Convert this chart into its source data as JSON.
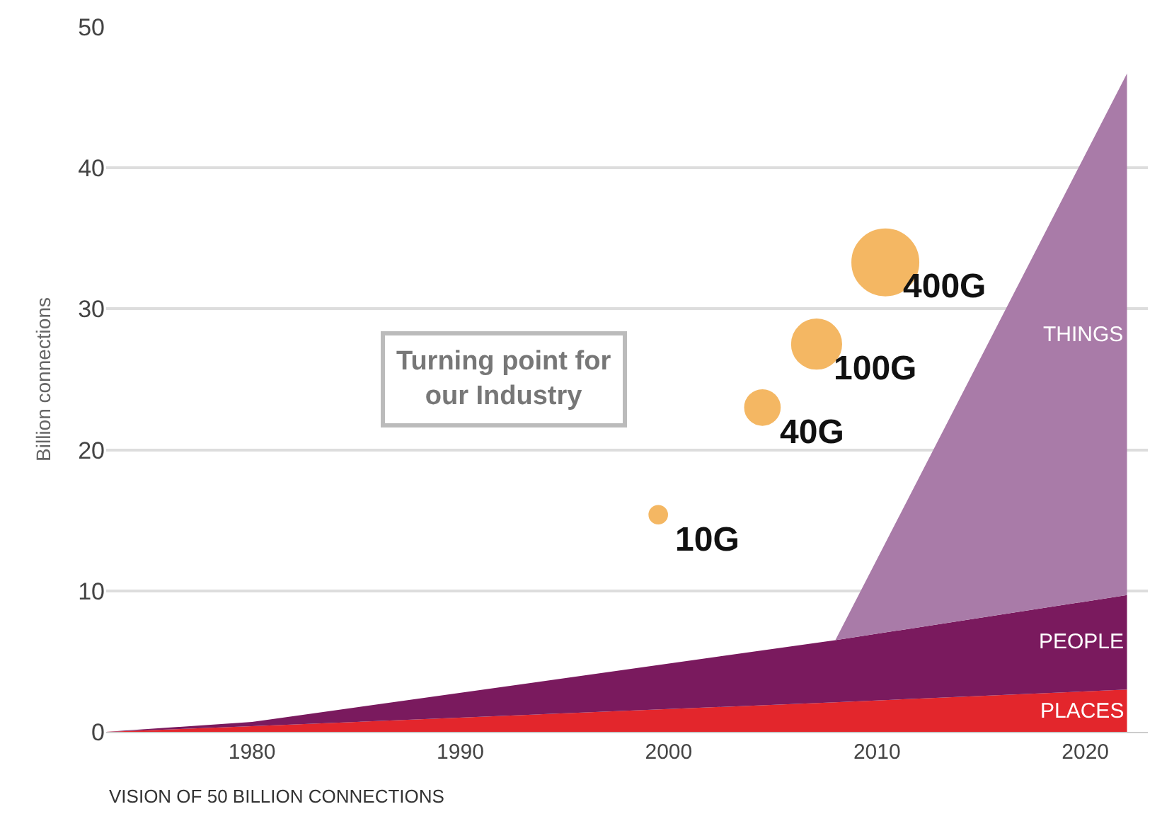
{
  "chart_data": {
    "type": "area",
    "stacked": true,
    "ylabel": "Billion connections",
    "x": [
      1973,
      1980,
      2008,
      2022
    ],
    "series": [
      {
        "name": "PLACES",
        "color": "#e3262c",
        "values": [
          0,
          0.4,
          2.1,
          3
        ]
      },
      {
        "name": "PEOPLE",
        "color": "#7a1a5e",
        "values": [
          0,
          0.3,
          4.4,
          6.7
        ]
      },
      {
        "name": "THINGS",
        "color": "#a97ba8",
        "values": [
          0,
          0,
          0,
          37
        ]
      },
      {
        "type": "bubble",
        "color": "#f09a22",
        "x": [
          1999.5,
          2004.5,
          2007.1,
          2010.4
        ],
        "values": [
          15.4,
          23,
          27.5,
          33.3
        ],
        "sizes": [
          0.1,
          0.31,
          0.58,
          1
        ]
      }
    ],
    "annotations": [
      {
        "text": "10G",
        "x": 1999.5,
        "y": 15.4
      },
      {
        "text": "40G",
        "x": 2004.5,
        "y": 23
      },
      {
        "text": "100G",
        "x": 2007.1,
        "y": 27.5
      },
      {
        "text": "400G",
        "x": 2010.4,
        "y": 33.3
      },
      "Turning point for\nour Industry",
      "VISION OF 50 BILLION CONNECTIONS"
    ],
    "xlim": [
      1973,
      2023
    ],
    "ylim": [
      0,
      50
    ],
    "xticks": [
      1980,
      1990,
      2000,
      2010,
      2020
    ],
    "yticks": [
      0,
      10,
      20,
      30,
      40,
      50
    ],
    "grid": "y",
    "legend": false
  }
}
